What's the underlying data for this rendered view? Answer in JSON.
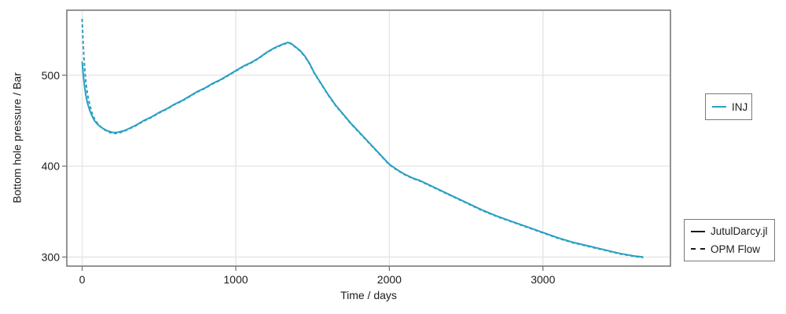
{
  "chart_data": {
    "type": "line",
    "title": "",
    "xlabel": "Time / days",
    "ylabel": "Bottom hole pressure / Bar",
    "xlim": [
      -100,
      3830
    ],
    "ylim": [
      290,
      571.5
    ],
    "xticks": [
      0,
      1000,
      2000,
      3000
    ],
    "xtick_labels": [
      "0",
      "1000",
      "2000",
      "3000"
    ],
    "yticks": [
      300,
      400,
      500
    ],
    "ytick_labels": [
      "300",
      "400",
      "500"
    ],
    "grid": true,
    "colors": {
      "inj_line": "#2b9fc3",
      "frame": "#7a7a7a",
      "gridline": "#e4e4e4",
      "text": "#1c1c1c",
      "legend_line": "#1a1a1a"
    },
    "legends": [
      {
        "name": "wells",
        "entries": [
          {
            "label": "INJ",
            "color": "#2b9fc3",
            "style": "solid"
          }
        ]
      },
      {
        "name": "simulators",
        "entries": [
          {
            "label": "JutulDarcy.jl",
            "color": "#1a1a1a",
            "style": "solid"
          },
          {
            "label": "OPM Flow",
            "color": "#1a1a1a",
            "style": "dashed"
          }
        ]
      }
    ],
    "series": [
      {
        "name": "JutulDarcy.jl",
        "well": "INJ",
        "style": "solid",
        "color": "#2b9fc3",
        "points": [
          [
            0,
            515
          ],
          [
            8,
            499
          ],
          [
            16,
            487
          ],
          [
            25,
            477
          ],
          [
            35,
            469
          ],
          [
            50,
            461
          ],
          [
            65,
            455
          ],
          [
            80,
            450
          ],
          [
            100,
            446
          ],
          [
            120,
            443
          ],
          [
            140,
            441
          ],
          [
            160,
            439
          ],
          [
            180,
            438
          ],
          [
            200,
            437
          ],
          [
            225,
            437
          ],
          [
            250,
            438
          ],
          [
            275,
            439
          ],
          [
            300,
            441
          ],
          [
            350,
            445
          ],
          [
            400,
            450
          ],
          [
            450,
            454
          ],
          [
            500,
            459
          ],
          [
            550,
            463
          ],
          [
            600,
            468
          ],
          [
            650,
            472
          ],
          [
            700,
            477
          ],
          [
            750,
            482
          ],
          [
            800,
            486
          ],
          [
            850,
            491
          ],
          [
            900,
            495
          ],
          [
            950,
            500
          ],
          [
            1000,
            505
          ],
          [
            1050,
            510
          ],
          [
            1100,
            514
          ],
          [
            1150,
            519
          ],
          [
            1200,
            525
          ],
          [
            1250,
            530
          ],
          [
            1290,
            533
          ],
          [
            1320,
            535
          ],
          [
            1340,
            536
          ],
          [
            1360,
            535
          ],
          [
            1390,
            531
          ],
          [
            1420,
            527
          ],
          [
            1450,
            521
          ],
          [
            1480,
            513
          ],
          [
            1510,
            503
          ],
          [
            1540,
            495
          ],
          [
            1570,
            487
          ],
          [
            1600,
            479
          ],
          [
            1650,
            467
          ],
          [
            1700,
            457
          ],
          [
            1750,
            447
          ],
          [
            1800,
            438
          ],
          [
            1850,
            429
          ],
          [
            1900,
            420
          ],
          [
            1950,
            411
          ],
          [
            2000,
            402
          ],
          [
            2050,
            396
          ],
          [
            2100,
            391
          ],
          [
            2150,
            387
          ],
          [
            2200,
            384
          ],
          [
            2300,
            376
          ],
          [
            2400,
            368
          ],
          [
            2500,
            360
          ],
          [
            2600,
            352
          ],
          [
            2700,
            345
          ],
          [
            2800,
            339
          ],
          [
            2900,
            333
          ],
          [
            3000,
            327
          ],
          [
            3100,
            321
          ],
          [
            3200,
            316
          ],
          [
            3300,
            312
          ],
          [
            3400,
            308
          ],
          [
            3500,
            304
          ],
          [
            3600,
            301
          ],
          [
            3653,
            300
          ]
        ]
      },
      {
        "name": "OPM Flow",
        "well": "INJ",
        "style": "dashed",
        "color": "#2b9fc3",
        "points": [
          [
            0,
            562
          ],
          [
            4,
            545
          ],
          [
            8,
            530
          ],
          [
            13,
            515
          ],
          [
            18,
            503
          ],
          [
            25,
            491
          ],
          [
            33,
            481
          ],
          [
            42,
            473
          ],
          [
            52,
            466
          ],
          [
            65,
            458
          ],
          [
            80,
            452
          ],
          [
            100,
            447
          ],
          [
            120,
            443.5
          ],
          [
            140,
            440.5
          ],
          [
            160,
            438.5
          ],
          [
            180,
            437
          ],
          [
            200,
            436
          ],
          [
            225,
            436
          ],
          [
            250,
            437
          ],
          [
            275,
            438.5
          ],
          [
            300,
            440.5
          ],
          [
            350,
            444.5
          ],
          [
            400,
            449.5
          ],
          [
            450,
            453.5
          ],
          [
            500,
            458.5
          ],
          [
            550,
            462.5
          ],
          [
            600,
            467.5
          ],
          [
            650,
            471.5
          ],
          [
            700,
            476.5
          ],
          [
            750,
            481.5
          ],
          [
            800,
            485.5
          ],
          [
            850,
            490.5
          ],
          [
            900,
            494.5
          ],
          [
            950,
            499.5
          ],
          [
            1000,
            504.5
          ],
          [
            1050,
            509.5
          ],
          [
            1100,
            513.5
          ],
          [
            1150,
            518.5
          ],
          [
            1200,
            524.5
          ],
          [
            1250,
            529.5
          ],
          [
            1290,
            532.5
          ],
          [
            1320,
            534.5
          ],
          [
            1340,
            535.5
          ],
          [
            1360,
            534.5
          ],
          [
            1390,
            530.5
          ],
          [
            1420,
            526.5
          ],
          [
            1450,
            520.5
          ],
          [
            1480,
            512.5
          ],
          [
            1510,
            502.5
          ],
          [
            1540,
            494.5
          ],
          [
            1570,
            486.5
          ],
          [
            1600,
            478.5
          ],
          [
            1650,
            466.5
          ],
          [
            1700,
            456.5
          ],
          [
            1750,
            446.5
          ],
          [
            1800,
            437.5
          ],
          [
            1850,
            428.5
          ],
          [
            1900,
            419.5
          ],
          [
            1950,
            410.5
          ],
          [
            2000,
            401.5
          ],
          [
            2050,
            395.5
          ],
          [
            2100,
            390.5
          ],
          [
            2150,
            386.5
          ],
          [
            2200,
            383.5
          ],
          [
            2300,
            375.5
          ],
          [
            2400,
            367.5
          ],
          [
            2500,
            359.5
          ],
          [
            2600,
            351.5
          ],
          [
            2700,
            344.5
          ],
          [
            2800,
            338.5
          ],
          [
            2900,
            332.5
          ],
          [
            3000,
            326.5
          ],
          [
            3100,
            320.5
          ],
          [
            3200,
            315.5
          ],
          [
            3300,
            311.5
          ],
          [
            3400,
            307.5
          ],
          [
            3500,
            303.5
          ],
          [
            3600,
            300.5
          ],
          [
            3653,
            299.5
          ]
        ]
      }
    ]
  }
}
